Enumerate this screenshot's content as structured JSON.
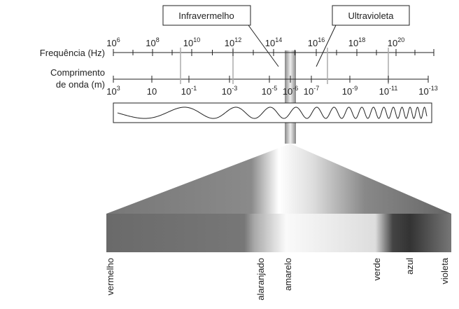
{
  "labels": {
    "infrared": "Infravermelho",
    "ultraviolet": "Ultravioleta",
    "frequency": "Frequência (Hz)",
    "wavelength_1": "Comprimento",
    "wavelength_2": "de onda (m)"
  },
  "frequency_ticks": [
    {
      "base": "10",
      "exp": "6"
    },
    {
      "base": "10",
      "exp": "8"
    },
    {
      "base": "10",
      "exp": "10"
    },
    {
      "base": "10",
      "exp": "12"
    },
    {
      "base": "10",
      "exp": "14"
    },
    {
      "base": "10",
      "exp": "16"
    },
    {
      "base": "10",
      "exp": "18"
    },
    {
      "base": "10",
      "exp": "20"
    }
  ],
  "wavelength_ticks": [
    {
      "base": "10",
      "exp": "3"
    },
    {
      "base": "10",
      "exp": ""
    },
    {
      "base": "10",
      "exp": "-1"
    },
    {
      "base": "10",
      "exp": "-3"
    },
    {
      "base": "10",
      "exp": "-5"
    },
    {
      "base": "10",
      "exp": "-6"
    },
    {
      "base": "10",
      "exp": "-7"
    },
    {
      "base": "10",
      "exp": "-9"
    },
    {
      "base": "10",
      "exp": "-11"
    },
    {
      "base": "10",
      "exp": "-13"
    }
  ],
  "colors": [
    "vermelho",
    "alaranjado",
    "amarelo",
    "verde",
    "azul",
    "violeta"
  ]
}
